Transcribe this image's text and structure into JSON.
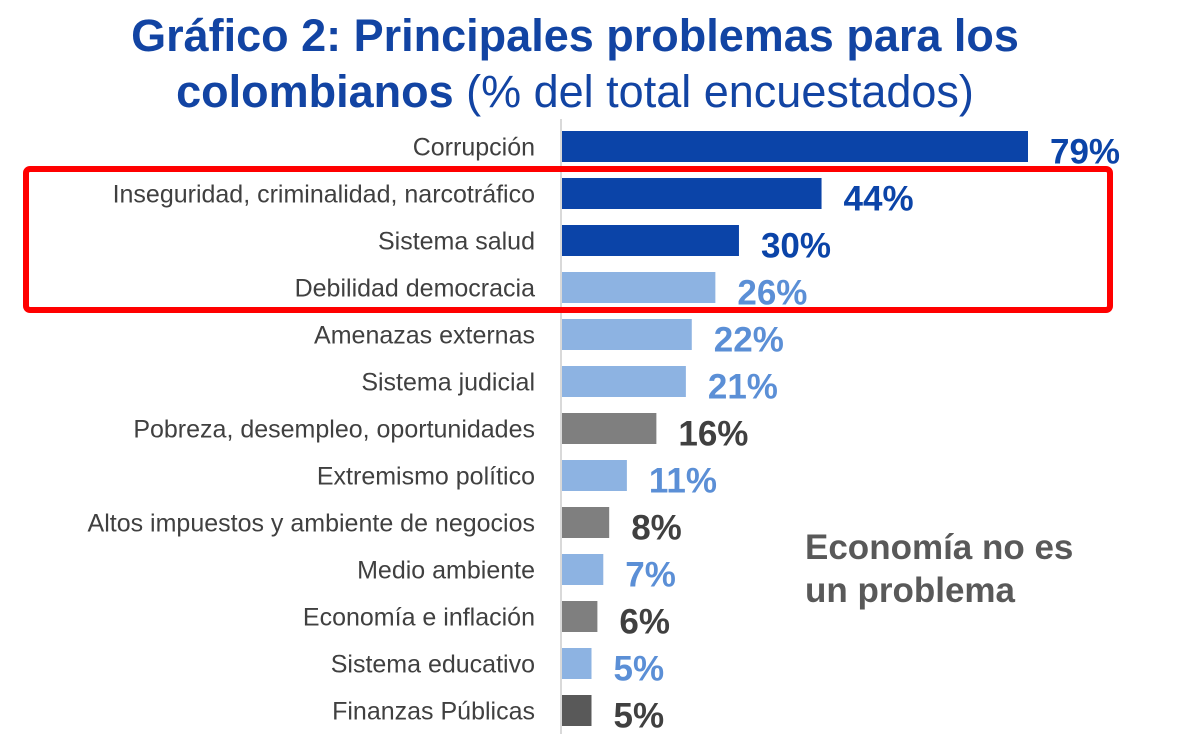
{
  "title": {
    "line1": "Gráfico 2: Principales problemas para los",
    "line2_bold": "colombianos",
    "line2_normal": " (% del total encuestados)"
  },
  "annotation": {
    "line1": "Economía no es",
    "line2": "un problema"
  },
  "colors": {
    "dark_blue": "#0b44a8",
    "light_blue": "#8db3e2",
    "gray": "#7f7f7f",
    "dark_gray": "#595959",
    "highlight": "#ff0000"
  },
  "chart_data": {
    "type": "bar",
    "orientation": "horizontal",
    "title": "Gráfico 2: Principales problemas para los colombianos (% del total encuestados)",
    "unit": "%",
    "xlim": [
      0,
      80
    ],
    "grid": false,
    "categories": [
      "Corrupción",
      "Inseguridad, criminalidad, narcotráfico",
      "Sistema salud",
      "Debilidad democracia",
      "Amenazas externas",
      "Sistema judicial",
      "Pobreza, desempleo, oportunidades",
      "Extremismo político",
      "Altos impuestos y ambiente de negocios",
      "Medio ambiente",
      "Economía e inflación",
      "Sistema educativo",
      "Finanzas Públicas"
    ],
    "values": [
      79,
      44,
      30,
      26,
      22,
      21,
      16,
      11,
      8,
      7,
      6,
      5,
      5
    ],
    "labels": [
      "79%",
      "44%",
      "30%",
      "26%",
      "22%",
      "21%",
      "16%",
      "11%",
      "8%",
      "7%",
      "6%",
      "5%",
      "5%"
    ],
    "bar_colors": [
      "dark_blue",
      "dark_blue",
      "dark_blue",
      "light_blue",
      "light_blue",
      "light_blue",
      "gray",
      "light_blue",
      "gray",
      "light_blue",
      "gray",
      "light_blue",
      "dark_gray"
    ],
    "highlighted_categories": [
      "Inseguridad, criminalidad, narcotráfico",
      "Sistema salud",
      "Debilidad democracia"
    ]
  }
}
